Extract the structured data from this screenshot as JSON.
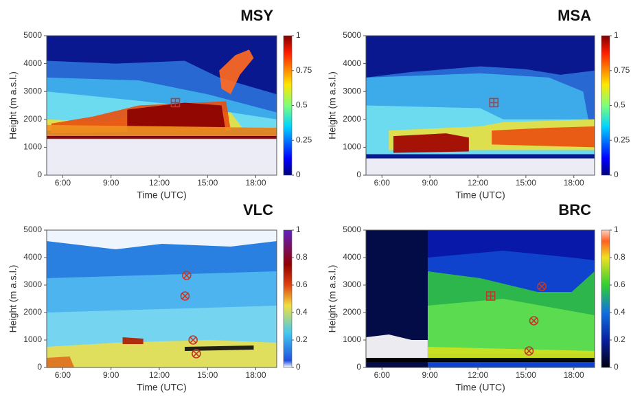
{
  "chart_data": [
    {
      "type": "heatmap",
      "title": "MSY",
      "xlabel": "Time (UTC)",
      "ylabel": "Height (m a.s.l.)",
      "xlim": [
        5,
        19.3
      ],
      "xticks": [
        {
          "value": 6,
          "label": "6:00"
        },
        {
          "value": 9,
          "label": "9:00"
        },
        {
          "value": 12,
          "label": "12:00"
        },
        {
          "value": 15,
          "label": "15:00"
        },
        {
          "value": 18,
          "label": "18:00"
        }
      ],
      "ylim": [
        0,
        5000
      ],
      "yticks": [
        0,
        1000,
        2000,
        3000,
        4000,
        5000
      ],
      "clim": [
        0,
        1
      ],
      "cticks": [
        0,
        0.25,
        0.5,
        0.75,
        1
      ],
      "colormap": "jet",
      "marker_color": "#c0392b",
      "markers": [
        {
          "x": 13,
          "y": 2600,
          "shape": "square"
        }
      ]
    },
    {
      "type": "heatmap",
      "title": "MSA",
      "xlabel": "Time (UTC)",
      "ylabel": "Height (m a.s.l.)",
      "xlim": [
        5,
        19.3
      ],
      "xticks": [
        {
          "value": 6,
          "label": "6:00"
        },
        {
          "value": 9,
          "label": "9:00"
        },
        {
          "value": 12,
          "label": "12:00"
        },
        {
          "value": 15,
          "label": "15:00"
        },
        {
          "value": 18,
          "label": "18:00"
        }
      ],
      "ylim": [
        0,
        5000
      ],
      "yticks": [
        0,
        1000,
        2000,
        3000,
        4000,
        5000
      ],
      "clim": [
        0,
        1
      ],
      "cticks": [
        0,
        0.25,
        0.5,
        0.75,
        1
      ],
      "colormap": "jet",
      "marker_color": "#c0392b",
      "markers": [
        {
          "x": 13,
          "y": 2600,
          "shape": "square"
        }
      ]
    },
    {
      "type": "heatmap",
      "title": "VLC",
      "xlabel": "Time (UTC)",
      "ylabel": "Height (m a.s.l.)",
      "xlim": [
        5,
        19.3
      ],
      "xticks": [
        {
          "value": 6,
          "label": "6:00"
        },
        {
          "value": 9,
          "label": "9:00"
        },
        {
          "value": 12,
          "label": "12:00"
        },
        {
          "value": 15,
          "label": "15:00"
        },
        {
          "value": 18,
          "label": "18:00"
        }
      ],
      "ylim": [
        0,
        5000
      ],
      "yticks": [
        0,
        1000,
        2000,
        3000,
        4000,
        5000
      ],
      "clim": [
        0,
        1
      ],
      "cticks": [
        0,
        0.2,
        0.4,
        0.6,
        0.8,
        1
      ],
      "colormap": "vlc",
      "marker_color": "#c0392b",
      "markers": [
        {
          "x": 13.7,
          "y": 3350,
          "shape": "circle"
        },
        {
          "x": 13.6,
          "y": 2600,
          "shape": "circle"
        },
        {
          "x": 14.1,
          "y": 1000,
          "shape": "circle"
        },
        {
          "x": 14.3,
          "y": 500,
          "shape": "circle"
        }
      ]
    },
    {
      "type": "heatmap",
      "title": "BRC",
      "xlabel": "Time (UTC)",
      "ylabel": "Height (m a.s.l.)",
      "xlim": [
        5,
        19.3
      ],
      "xticks": [
        {
          "value": 6,
          "label": "6:00"
        },
        {
          "value": 9,
          "label": "9:00"
        },
        {
          "value": 12,
          "label": "12:00"
        },
        {
          "value": 15,
          "label": "15:00"
        },
        {
          "value": 18,
          "label": "18:00"
        }
      ],
      "ylim": [
        0,
        5000
      ],
      "yticks": [
        0,
        1000,
        2000,
        3000,
        4000,
        5000
      ],
      "clim": [
        0,
        1
      ],
      "cticks": [
        0,
        0.2,
        0.4,
        0.6,
        0.8,
        1
      ],
      "colormap": "brc",
      "marker_color": "#c0392b",
      "markers": [
        {
          "x": 12.8,
          "y": 2600,
          "shape": "square"
        },
        {
          "x": 16,
          "y": 2950,
          "shape": "circle"
        },
        {
          "x": 15.5,
          "y": 1700,
          "shape": "circle"
        },
        {
          "x": 15.2,
          "y": 600,
          "shape": "circle"
        }
      ]
    }
  ]
}
